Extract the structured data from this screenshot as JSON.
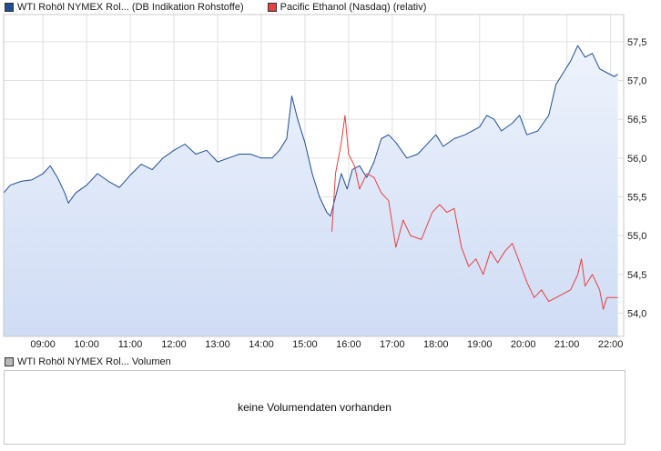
{
  "legend": {
    "series1_label": "WTI Rohöl NYMEX Rol... (DB Indikation Rohstoffe)",
    "series1_color": "#1f4e96",
    "series2_label": "Pacific Ethanol (Nasdaq) (relativ)",
    "series2_color": "#e8403f"
  },
  "volume": {
    "legend_label": "WTI Rohöl NYMEX Rol... Volumen",
    "legend_color": "#b9b9b9",
    "message": "keine Volumendaten vorhanden"
  },
  "chart_data": {
    "type": "line",
    "x_ticks": [
      "09:00",
      "10:00",
      "11:00",
      "12:00",
      "13:00",
      "14:00",
      "15:00",
      "16:00",
      "17:00",
      "18:00",
      "19:00",
      "20:00",
      "21:00",
      "22:00"
    ],
    "y_ticks": [
      "54,0",
      "54,5",
      "55,0",
      "55,5",
      "56,0",
      "56,5",
      "57,0",
      "57,5"
    ],
    "ylim": [
      53.7,
      57.85
    ],
    "xlim_hours": [
      8.1,
      22.3
    ],
    "grid": true,
    "y_axis_side": "right",
    "series": [
      {
        "name": "WTI Rohöl NYMEX Rol... (DB Indikation Rohstoffe)",
        "color": "#1f4e96",
        "area_fill": true,
        "points": [
          [
            "08:06",
            55.55
          ],
          [
            "08:15",
            55.65
          ],
          [
            "08:30",
            55.7
          ],
          [
            "08:45",
            55.72
          ],
          [
            "09:00",
            55.8
          ],
          [
            "09:10",
            55.9
          ],
          [
            "09:20",
            55.75
          ],
          [
            "09:30",
            55.55
          ],
          [
            "09:35",
            55.42
          ],
          [
            "09:45",
            55.55
          ],
          [
            "10:00",
            55.65
          ],
          [
            "10:15",
            55.8
          ],
          [
            "10:30",
            55.7
          ],
          [
            "10:45",
            55.62
          ],
          [
            "11:00",
            55.78
          ],
          [
            "11:15",
            55.92
          ],
          [
            "11:30",
            55.85
          ],
          [
            "11:45",
            56.0
          ],
          [
            "12:00",
            56.1
          ],
          [
            "12:15",
            56.18
          ],
          [
            "12:30",
            56.05
          ],
          [
            "12:45",
            56.1
          ],
          [
            "13:00",
            55.95
          ],
          [
            "13:15",
            56.0
          ],
          [
            "13:30",
            56.05
          ],
          [
            "13:45",
            56.05
          ],
          [
            "14:00",
            56.0
          ],
          [
            "14:15",
            56.0
          ],
          [
            "14:25",
            56.1
          ],
          [
            "14:35",
            56.25
          ],
          [
            "14:42",
            56.8
          ],
          [
            "14:50",
            56.5
          ],
          [
            "15:00",
            56.2
          ],
          [
            "15:10",
            55.8
          ],
          [
            "15:20",
            55.5
          ],
          [
            "15:30",
            55.3
          ],
          [
            "15:35",
            55.25
          ],
          [
            "15:42",
            55.5
          ],
          [
            "15:50",
            55.8
          ],
          [
            "15:58",
            55.6
          ],
          [
            "16:05",
            55.85
          ],
          [
            "16:15",
            55.9
          ],
          [
            "16:25",
            55.75
          ],
          [
            "16:35",
            55.95
          ],
          [
            "16:45",
            56.25
          ],
          [
            "16:55",
            56.3
          ],
          [
            "17:05",
            56.2
          ],
          [
            "17:20",
            56.0
          ],
          [
            "17:35",
            56.05
          ],
          [
            "17:50",
            56.2
          ],
          [
            "18:00",
            56.3
          ],
          [
            "18:10",
            56.15
          ],
          [
            "18:25",
            56.25
          ],
          [
            "18:40",
            56.3
          ],
          [
            "19:00",
            56.4
          ],
          [
            "19:10",
            56.55
          ],
          [
            "19:20",
            56.5
          ],
          [
            "19:30",
            56.35
          ],
          [
            "19:45",
            56.45
          ],
          [
            "19:55",
            56.55
          ],
          [
            "20:05",
            56.3
          ],
          [
            "20:20",
            56.35
          ],
          [
            "20:35",
            56.55
          ],
          [
            "20:45",
            56.95
          ],
          [
            "20:55",
            57.1
          ],
          [
            "21:05",
            57.25
          ],
          [
            "21:15",
            57.45
          ],
          [
            "21:25",
            57.3
          ],
          [
            "21:35",
            57.35
          ],
          [
            "21:45",
            57.15
          ],
          [
            "21:55",
            57.1
          ],
          [
            "22:05",
            57.05
          ],
          [
            "22:10",
            57.08
          ]
        ]
      },
      {
        "name": "Pacific Ethanol (Nasdaq) (relativ)",
        "color": "#e8403f",
        "points": [
          [
            "15:37",
            55.05
          ],
          [
            "15:42",
            55.8
          ],
          [
            "15:50",
            56.2
          ],
          [
            "15:55",
            56.55
          ],
          [
            "16:00",
            56.05
          ],
          [
            "16:08",
            55.9
          ],
          [
            "16:15",
            55.6
          ],
          [
            "16:25",
            55.8
          ],
          [
            "16:35",
            55.75
          ],
          [
            "16:45",
            55.55
          ],
          [
            "16:55",
            55.45
          ],
          [
            "17:05",
            54.85
          ],
          [
            "17:15",
            55.2
          ],
          [
            "17:25",
            55.0
          ],
          [
            "17:40",
            54.95
          ],
          [
            "17:55",
            55.3
          ],
          [
            "18:05",
            55.4
          ],
          [
            "18:15",
            55.3
          ],
          [
            "18:25",
            55.35
          ],
          [
            "18:35",
            54.85
          ],
          [
            "18:45",
            54.6
          ],
          [
            "18:55",
            54.7
          ],
          [
            "19:05",
            54.5
          ],
          [
            "19:15",
            54.8
          ],
          [
            "19:25",
            54.65
          ],
          [
            "19:35",
            54.8
          ],
          [
            "19:45",
            54.9
          ],
          [
            "19:55",
            54.65
          ],
          [
            "20:05",
            54.4
          ],
          [
            "20:15",
            54.2
          ],
          [
            "20:25",
            54.3
          ],
          [
            "20:35",
            54.15
          ],
          [
            "20:45",
            54.2
          ],
          [
            "20:55",
            54.25
          ],
          [
            "21:05",
            54.3
          ],
          [
            "21:15",
            54.5
          ],
          [
            "21:20",
            54.7
          ],
          [
            "21:25",
            54.35
          ],
          [
            "21:35",
            54.5
          ],
          [
            "21:45",
            54.3
          ],
          [
            "21:50",
            54.05
          ],
          [
            "21:55",
            54.2
          ],
          [
            "22:10",
            54.2
          ]
        ]
      }
    ]
  }
}
